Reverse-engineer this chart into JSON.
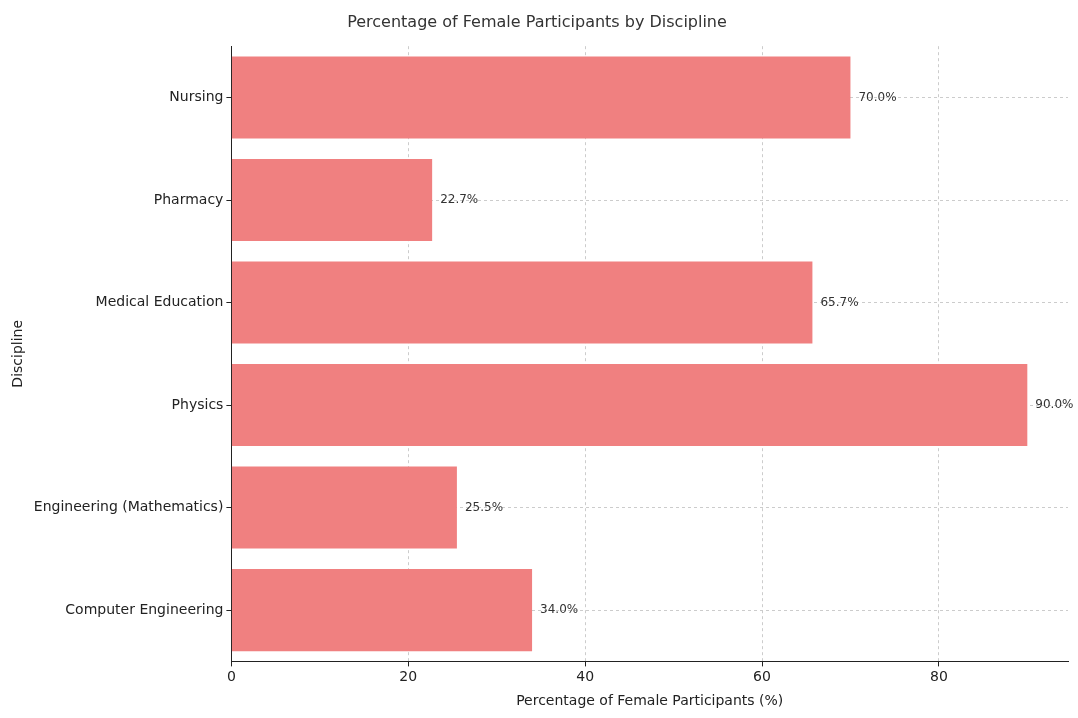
{
  "chart_data": {
    "type": "bar",
    "orientation": "horizontal",
    "title": "Percentage of Female Participants by Discipline",
    "xlabel": "Percentage of Female Participants (%)",
    "ylabel": "Discipline",
    "categories": [
      "Nursing",
      "Pharmacy",
      "Medical Education",
      "Physics",
      "Engineering (Mathematics)",
      "Computer Engineering"
    ],
    "values": [
      70.0,
      22.7,
      65.7,
      90.0,
      25.5,
      34.0
    ],
    "value_labels": [
      "70.0%",
      "22.7%",
      "65.7%",
      "90.0%",
      "25.5%",
      "34.0%"
    ],
    "color": "#f08080",
    "xlim": [
      0,
      94.6
    ],
    "xticks": [
      0,
      20,
      40,
      60,
      80
    ],
    "grid": true
  }
}
